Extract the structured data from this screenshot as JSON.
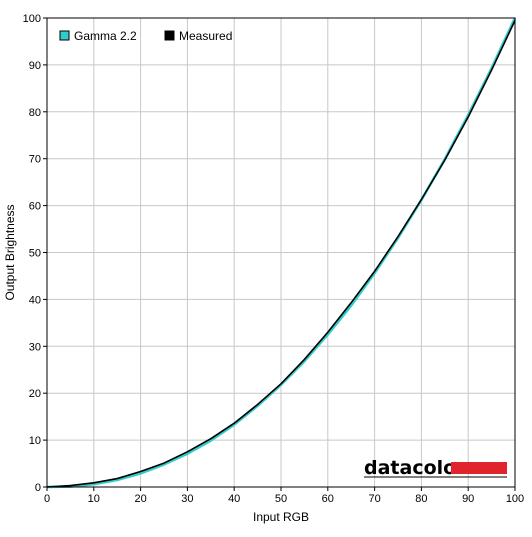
{
  "chart_data": {
    "type": "line",
    "xlabel": "Input RGB",
    "ylabel": "Output Brightness",
    "xlim": [
      0,
      100
    ],
    "ylim": [
      0,
      100
    ],
    "x_ticks": [
      0,
      10,
      20,
      30,
      40,
      50,
      60,
      70,
      80,
      90,
      100
    ],
    "y_ticks": [
      0,
      10,
      20,
      30,
      40,
      50,
      60,
      70,
      80,
      90,
      100
    ],
    "grid": true,
    "legend_position": "top-left",
    "series": [
      {
        "name": "Gamma 2.2",
        "color": "#33cccc",
        "x": [
          0,
          5,
          10,
          15,
          20,
          25,
          30,
          35,
          40,
          45,
          50,
          55,
          60,
          65,
          70,
          75,
          80,
          85,
          90,
          95,
          100
        ],
        "y": [
          0,
          0.1,
          0.6,
          1.5,
          2.9,
          4.8,
          7.1,
          9.9,
          13.3,
          17.3,
          21.8,
          26.8,
          32.5,
          38.7,
          45.6,
          53.1,
          61.2,
          69.9,
          79.3,
          89.3,
          100
        ]
      },
      {
        "name": "Measured",
        "color": "#000000",
        "x": [
          0,
          5,
          10,
          15,
          20,
          25,
          30,
          35,
          40,
          45,
          50,
          55,
          60,
          65,
          70,
          75,
          80,
          85,
          90,
          95,
          100
        ],
        "y": [
          0,
          0.3,
          0.9,
          1.8,
          3.3,
          5.1,
          7.5,
          10.3,
          13.6,
          17.6,
          22.0,
          27.2,
          33.0,
          39.3,
          46.0,
          53.4,
          61.3,
          69.7,
          78.9,
          88.9,
          99.5
        ]
      }
    ]
  },
  "branding": {
    "logo_text": "datacolor",
    "logo_bar_color": "#e0242c"
  }
}
